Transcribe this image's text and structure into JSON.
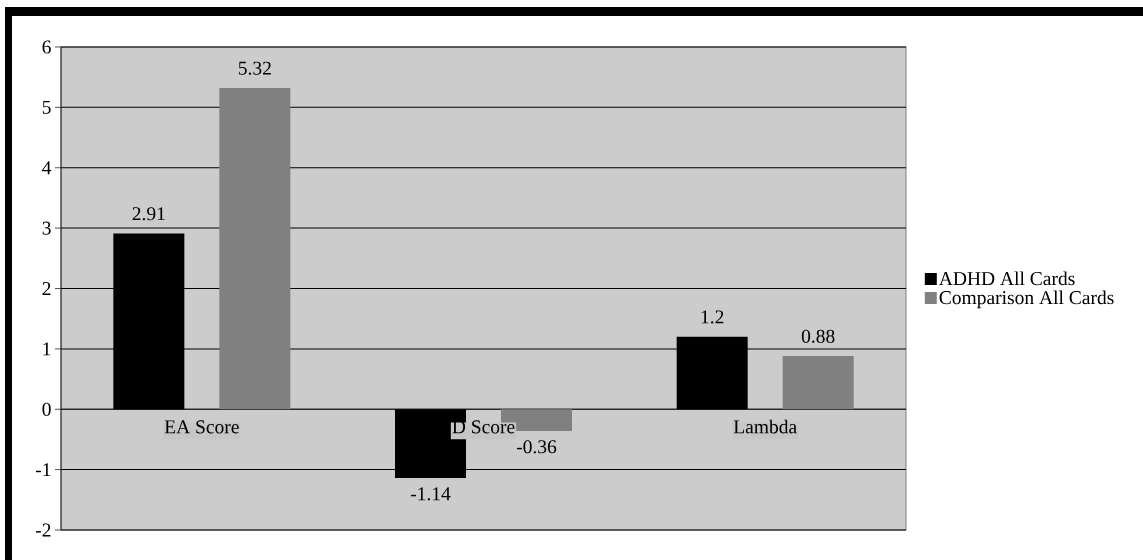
{
  "chart_data": {
    "type": "bar",
    "categories": [
      "EA Score",
      "D Score",
      "Lambda"
    ],
    "series": [
      {
        "name": "ADHD All Cards",
        "color": "#000000",
        "values": [
          2.91,
          -1.14,
          1.2
        ]
      },
      {
        "name": "Comparison All Cards",
        "color": "#808080",
        "values": [
          5.32,
          -0.36,
          0.88
        ]
      }
    ],
    "ylim": [
      -2,
      6
    ],
    "yticks": [
      -2,
      -1,
      0,
      1,
      2,
      3,
      4,
      5,
      6
    ],
    "grid": "y",
    "legend": "right",
    "data_labels": true
  }
}
